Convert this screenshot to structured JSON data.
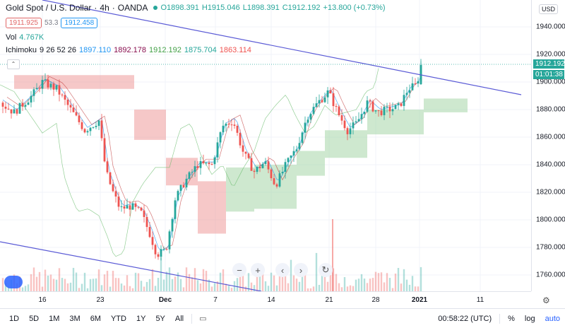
{
  "header": {
    "symbol": "Gold Spot / U.S. Dollar",
    "interval": "4h",
    "source": "OANDA",
    "open": "O1898.391",
    "high": "H1915.046",
    "low": "L1898.391",
    "close": "C1912.192",
    "change": "+13.800 (+0.73%)",
    "sell_price": "1911.925",
    "spread": "53.3",
    "buy_price": "1912.458"
  },
  "volume_legend": {
    "label": "Vol",
    "value": "4.767K"
  },
  "ichimoku_legend": {
    "label": "Ichimoku",
    "params": "9 26 52 26",
    "v1": "1897.110",
    "v2": "1892.178",
    "v3": "1912.192",
    "v4": "1875.704",
    "v5": "1863.114"
  },
  "price_axis": {
    "currency": "USD",
    "ticks": [
      "1940.000",
      "1920.000",
      "1900.000",
      "1880.000",
      "1860.000",
      "1840.000",
      "1820.000",
      "1800.000",
      "1780.000",
      "1760.000"
    ],
    "last_price": "1912.192",
    "countdown": "01:01:38"
  },
  "time_axis": {
    "ticks": [
      "16",
      "23",
      "Dec",
      "7",
      "14",
      "21",
      "28",
      "2021",
      "11"
    ]
  },
  "bottom_bar": {
    "ranges": [
      "1D",
      "5D",
      "1M",
      "3M",
      "6M",
      "YTD",
      "1Y",
      "5Y",
      "All"
    ],
    "clock": "00:58:22 (UTC)",
    "percent": "%",
    "log": "log",
    "auto": "auto"
  },
  "colors": {
    "up": "#26a69a",
    "down": "#ef5350",
    "trendline": "#5b5bd6",
    "kumo_bull": "#a5d6a7",
    "kumo_bear": "#ef9a9a"
  },
  "icons": [
    "chart-type-icon",
    "zoom-out-icon",
    "zoom-in-icon",
    "scroll-left-icon",
    "scroll-right-icon",
    "reset-icon",
    "calendar-range-icon",
    "settings-gear-icon",
    "tradingview-logo-icon"
  ]
}
